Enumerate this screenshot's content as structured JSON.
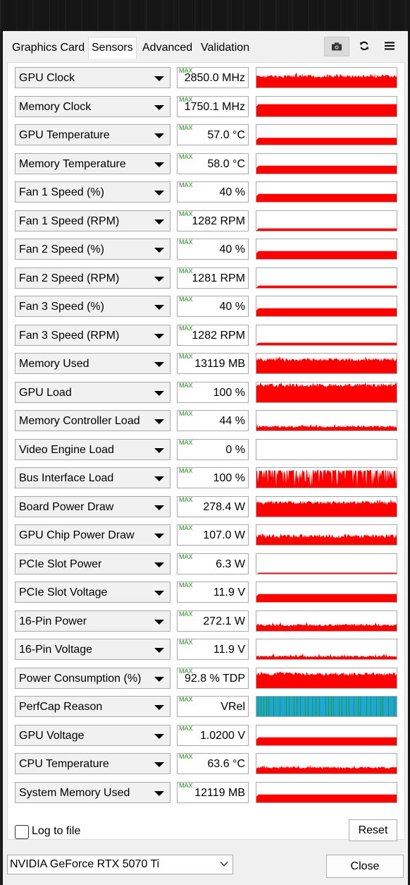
{
  "tabs": [
    {
      "label": "Graphics Card",
      "active": false
    },
    {
      "label": "Sensors",
      "active": true
    },
    {
      "label": "Advanced",
      "active": false
    },
    {
      "label": "Validation",
      "active": false
    }
  ],
  "toolbar": {
    "screenshot_icon": "camera-icon",
    "refresh_icon": "refresh-icon",
    "menu_icon": "hamburger-menu-icon"
  },
  "max_label": "MAX",
  "sensors": [
    {
      "name": "GPU Clock",
      "value": "2850.0 MHz",
      "graph": "high-spiky",
      "level": 0.65
    },
    {
      "name": "Memory Clock",
      "value": "1750.1 MHz",
      "graph": "flat",
      "level": 0.62
    },
    {
      "name": "GPU Temperature",
      "value": "57.0 °C",
      "graph": "flat",
      "level": 0.35
    },
    {
      "name": "Memory Temperature",
      "value": "58.0 °C",
      "graph": "flat",
      "level": 0.4
    },
    {
      "name": "Fan 1 Speed (%)",
      "value": "40 %",
      "graph": "flat",
      "level": 0.4
    },
    {
      "name": "Fan 1 Speed (RPM)",
      "value": "1282 RPM",
      "graph": "flat",
      "level": 0.12
    },
    {
      "name": "Fan 2 Speed (%)",
      "value": "40 %",
      "graph": "flat",
      "level": 0.4
    },
    {
      "name": "Fan 2 Speed (RPM)",
      "value": "1281 RPM",
      "graph": "flat",
      "level": 0.12
    },
    {
      "name": "Fan 3 Speed (%)",
      "value": "40 %",
      "graph": "flat",
      "level": 0.4
    },
    {
      "name": "Fan 3 Speed (RPM)",
      "value": "1282 RPM",
      "graph": "flat",
      "level": 0.12
    },
    {
      "name": "Memory Used",
      "value": "13119 MB",
      "graph": "high-spiky",
      "level": 0.78
    },
    {
      "name": "GPU Load",
      "value": "100 %",
      "graph": "high-spiky",
      "level": 0.95
    },
    {
      "name": "Memory Controller Load",
      "value": "44 %",
      "graph": "low-spiky",
      "level": 0.25
    },
    {
      "name": "Video Engine Load",
      "value": "0 %",
      "graph": "empty",
      "level": 0.0
    },
    {
      "name": "Bus Interface Load",
      "value": "100 %",
      "graph": "bars",
      "level": 0.9
    },
    {
      "name": "Board Power Draw",
      "value": "278.4 W",
      "graph": "high-spiky",
      "level": 0.8
    },
    {
      "name": "GPU Chip Power Draw",
      "value": "107.0 W",
      "graph": "mid-spiky",
      "level": 0.55
    },
    {
      "name": "PCIe Slot Power",
      "value": "6.3 W",
      "graph": "flat",
      "level": 0.05
    },
    {
      "name": "PCIe Slot Voltage",
      "value": "11.9 V",
      "graph": "flat",
      "level": 0.4
    },
    {
      "name": "16-Pin Power",
      "value": "272.1 W",
      "graph": "low-spiky",
      "level": 0.35
    },
    {
      "name": "16-Pin Voltage",
      "value": "11.9 V",
      "graph": "low-spiky",
      "level": 0.2
    },
    {
      "name": "Power Consumption (%)",
      "value": "92.8 % TDP",
      "graph": "high-spiky",
      "level": 0.8
    },
    {
      "name": "PerfCap Reason",
      "value": "VRel",
      "graph": "perfcap",
      "level": 1.0
    },
    {
      "name": "GPU Voltage",
      "value": "1.0200 V",
      "graph": "flat",
      "level": 0.4
    },
    {
      "name": "CPU Temperature",
      "value": "63.6 °C",
      "graph": "low-spiky",
      "level": 0.35
    },
    {
      "name": "System Memory Used",
      "value": "12119 MB",
      "graph": "flat",
      "level": 0.4
    }
  ],
  "colors": {
    "graph_fill": "#ff0000",
    "perfcap_blue": "#1ea5d6",
    "perfcap_green": "#1a9e30",
    "max_label": "#1f8f1f"
  },
  "footer": {
    "log_label": "Log to file",
    "log_checked": false,
    "reset_label": "Reset",
    "gpu_select": "NVIDIA GeForce RTX 5070 Ti",
    "close_label": "Close"
  }
}
